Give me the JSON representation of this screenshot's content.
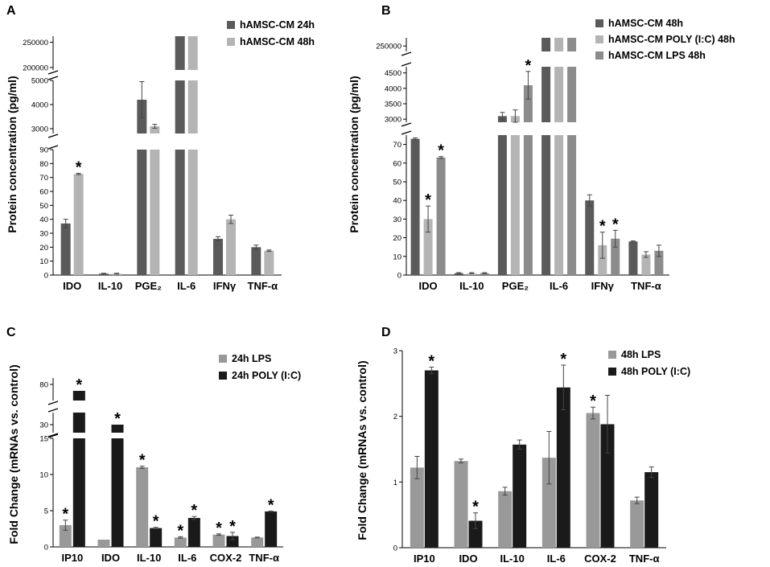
{
  "figure": {
    "panels": [
      "A",
      "B",
      "C",
      "D"
    ]
  },
  "chart_data": [
    {
      "panel": "A",
      "type": "bar",
      "ylabel": "Protein concentration (pg/ml)",
      "categories": [
        "IDO",
        "IL-10",
        "PGE₂",
        "IL-6",
        "IFNγ",
        "TNF-α"
      ],
      "series": [
        {
          "name": "hAMSC-CM 24h",
          "color": "#5a5a5a",
          "values": [
            37,
            1,
            4200,
            262000,
            26,
            20
          ],
          "errors": [
            3,
            0.3,
            750,
            0,
            1.5,
            1.5
          ],
          "significant": [
            false,
            false,
            false,
            false,
            false,
            false
          ]
        },
        {
          "name": "hAMSC-CM 48h",
          "color": "#b4b4b4",
          "values": [
            72.5,
            1,
            3100,
            262000,
            40,
            17.5
          ],
          "errors": [
            0.5,
            0.3,
            80,
            0,
            3,
            0.5
          ],
          "significant": [
            true,
            false,
            false,
            false,
            false,
            false
          ]
        }
      ],
      "axis_segments": [
        {
          "range": [
            0,
            90
          ],
          "ticks": [
            0,
            10,
            20,
            30,
            40,
            50,
            60,
            70,
            80,
            90
          ]
        },
        {
          "range": [
            2800,
            5000
          ],
          "ticks": [
            3000,
            4000,
            5000
          ]
        },
        {
          "range": [
            195000,
            262000
          ],
          "ticks": [
            200000,
            250000
          ]
        }
      ]
    },
    {
      "panel": "B",
      "type": "bar",
      "ylabel": "Protein concentration (pg/ml)",
      "categories": [
        "IDO",
        "IL-10",
        "PGE₂",
        "IL-6",
        "IFNγ",
        "TNF-α"
      ],
      "series": [
        {
          "name": "hAMSC-CM 48h",
          "color": "#5a5a5a",
          "values": [
            73,
            1,
            3100,
            265000,
            40,
            18
          ],
          "errors": [
            0.5,
            0.3,
            120,
            0,
            3,
            0.3
          ],
          "significant": [
            false,
            false,
            false,
            false,
            false,
            false
          ]
        },
        {
          "name": "hAMSC-CM POLY (I:C) 48h",
          "color": "#b4b4b4",
          "values": [
            30,
            1,
            3100,
            265000,
            16,
            11
          ],
          "errors": [
            7,
            0.3,
            200,
            0,
            7,
            1.5
          ],
          "significant": [
            true,
            false,
            false,
            false,
            true,
            false
          ]
        },
        {
          "name": "hAMSC-CM LPS 48h",
          "color": "#8c8c8c",
          "values": [
            63,
            1,
            4100,
            265000,
            19.5,
            13
          ],
          "errors": [
            0.5,
            0.3,
            450,
            0,
            4.5,
            3
          ],
          "significant": [
            true,
            false,
            true,
            false,
            true,
            false
          ]
        }
      ],
      "axis_segments": [
        {
          "range": [
            0,
            75
          ],
          "ticks": [
            0,
            10,
            20,
            30,
            40,
            50,
            60,
            70
          ]
        },
        {
          "range": [
            2900,
            4700
          ],
          "ticks": [
            3000,
            3500,
            4000,
            4500
          ]
        },
        {
          "range": [
            240000,
            265000
          ],
          "ticks": [
            250000
          ]
        }
      ]
    },
    {
      "panel": "C",
      "type": "bar",
      "ylabel": "Fold Change (mRNAs vs. control)",
      "categories": [
        "IP10",
        "IDO",
        "IL-10",
        "IL-6",
        "COX-2",
        "TNF-α"
      ],
      "series": [
        {
          "name": "24h LPS",
          "color": "#999999",
          "values": [
            3,
            1,
            11,
            1.3,
            1.7,
            1.3
          ],
          "errors": [
            0.7,
            0,
            0.15,
            0.1,
            0.1,
            0.05
          ],
          "significant": [
            true,
            false,
            true,
            true,
            true,
            false
          ]
        },
        {
          "name": "24h POLY (I:C)",
          "color": "#1a1a1a",
          "values": [
            78,
            30,
            2.6,
            4,
            1.5,
            4.9
          ],
          "errors": [
            0,
            0,
            0.1,
            0.2,
            0.5,
            0.05
          ],
          "significant": [
            true,
            true,
            true,
            true,
            true,
            true
          ]
        }
      ],
      "axis_segments": [
        {
          "range": [
            0,
            15
          ],
          "ticks": [
            0,
            5,
            10,
            15
          ]
        },
        {
          "range": [
            28,
            33
          ],
          "ticks": [
            30
          ]
        },
        {
          "range": [
            75,
            82
          ],
          "ticks": [
            80
          ]
        }
      ]
    },
    {
      "panel": "D",
      "type": "bar",
      "ylabel": "Fold Change (mRNAs vs. control)",
      "categories": [
        "IP10",
        "IDO",
        "IL-10",
        "IL-6",
        "COX-2",
        "TNF-α"
      ],
      "ylim": [
        0,
        3
      ],
      "ticks": [
        0,
        1,
        2,
        3
      ],
      "series": [
        {
          "name": "48h LPS",
          "color": "#999999",
          "values": [
            1.22,
            1.32,
            0.86,
            1.37,
            2.05,
            0.72
          ],
          "errors": [
            0.17,
            0.03,
            0.06,
            0.4,
            0.09,
            0.05
          ],
          "significant": [
            false,
            false,
            false,
            false,
            true,
            false
          ]
        },
        {
          "name": "48h POLY (I:C)",
          "color": "#1a1a1a",
          "values": [
            2.7,
            0.41,
            1.57,
            2.44,
            1.88,
            1.15
          ],
          "errors": [
            0.05,
            0.12,
            0.07,
            0.34,
            0.44,
            0.08
          ],
          "significant": [
            true,
            true,
            false,
            true,
            false,
            false
          ]
        }
      ]
    }
  ]
}
